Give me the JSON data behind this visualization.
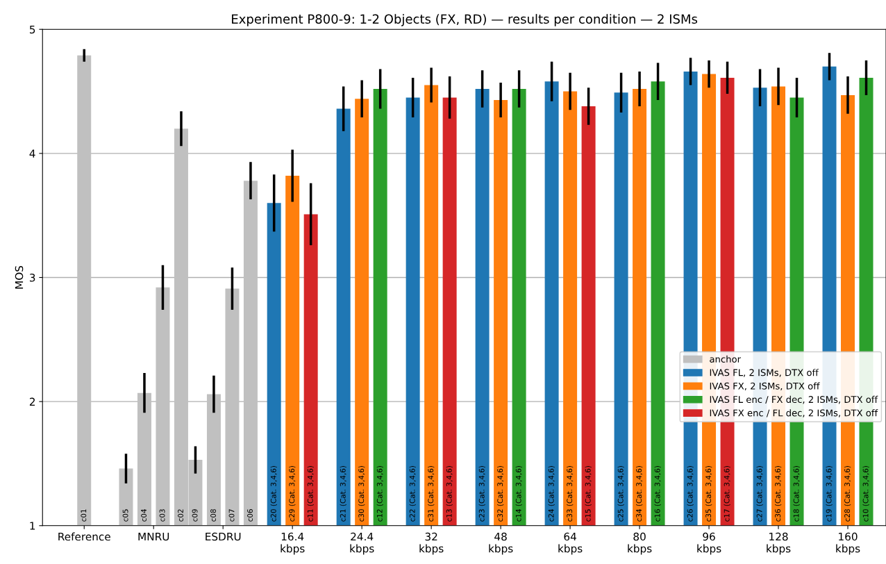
{
  "chart_data": {
    "type": "bar",
    "title": "Experiment P800-9: 1-2 Objects (FX, RD) — results per condition — 2 ISMs",
    "ylabel": "MOS",
    "categories": [
      "Reference",
      "MNRU",
      "ESDRU",
      "16.4\nkbps",
      "24.4\nkbps",
      "32\nkbps",
      "48\nkbps",
      "64\nkbps",
      "80\nkbps",
      "96\nkbps",
      "128\nkbps",
      "160\nkbps"
    ],
    "ylim": [
      1,
      5
    ],
    "yticks": [
      1,
      2,
      3,
      4,
      5
    ],
    "grid": "y",
    "legend": "bottom right",
    "series": [
      {
        "name": "anchor",
        "color": "#c0c0c0",
        "values": [
          4.79,
          1.46,
          1.53,
          null,
          null,
          null,
          null,
          null,
          null,
          null,
          null,
          null
        ],
        "errors": [
          0.05,
          0.12,
          0.11,
          null,
          null,
          null,
          null,
          null,
          null,
          null,
          null,
          null
        ],
        "value_labels": [
          "c01",
          "c05",
          "c09",
          null,
          null,
          null,
          null,
          null,
          null,
          null,
          null,
          null
        ]
      },
      {
        "color": "#c0c0c0",
        "values": [
          null,
          2.07,
          2.06,
          null,
          null,
          null,
          null,
          null,
          null,
          null,
          null,
          null
        ],
        "errors": [
          null,
          0.16,
          0.15,
          null,
          null,
          null,
          null,
          null,
          null,
          null,
          null,
          null
        ],
        "value_labels": [
          null,
          "c04",
          "c08",
          null,
          null,
          null,
          null,
          null,
          null,
          null,
          null,
          null
        ]
      },
      {
        "color": "#c0c0c0",
        "values": [
          null,
          2.92,
          2.91,
          null,
          null,
          null,
          null,
          null,
          null,
          null,
          null,
          null
        ],
        "errors": [
          null,
          0.18,
          0.17,
          null,
          null,
          null,
          null,
          null,
          null,
          null,
          null,
          null
        ],
        "value_labels": [
          null,
          "c03",
          "c07",
          null,
          null,
          null,
          null,
          null,
          null,
          null,
          null,
          null
        ]
      },
      {
        "color": "#c0c0c0",
        "values": [
          null,
          4.2,
          3.78,
          null,
          null,
          null,
          null,
          null,
          null,
          null,
          null,
          null
        ],
        "errors": [
          null,
          0.14,
          0.15,
          null,
          null,
          null,
          null,
          null,
          null,
          null,
          null,
          null
        ],
        "value_labels": [
          null,
          "c02",
          "c06",
          null,
          null,
          null,
          null,
          null,
          null,
          null,
          null,
          null
        ]
      },
      {
        "name": "IVAS FL, 2 ISMs, DTX off",
        "color": "#1f77b4",
        "values": [
          null,
          null,
          null,
          3.6,
          4.36,
          4.45,
          4.52,
          4.58,
          4.49,
          4.66,
          4.53,
          4.7
        ],
        "errors": [
          null,
          null,
          null,
          0.23,
          0.18,
          0.16,
          0.15,
          0.16,
          0.16,
          0.11,
          0.15,
          0.11
        ],
        "value_labels": [
          null,
          null,
          null,
          "c20 (Cat. 3,4,6)",
          "c21 (Cat. 3,4,6)",
          "c22 (Cat. 3,4,6)",
          "c23 (Cat. 3,4,6)",
          "c24 (Cat. 3,4,6)",
          "c25 (Cat. 3,4,6)",
          "c26 (Cat. 3,4,6)",
          "c27 (Cat. 3,4,6)",
          "c19 (Cat. 3,4,6)"
        ]
      },
      {
        "name": "IVAS FX, 2 ISMs, DTX off",
        "color": "#ff7f0e",
        "values": [
          null,
          null,
          null,
          3.82,
          4.44,
          4.55,
          4.43,
          4.5,
          4.52,
          4.64,
          4.54,
          4.47
        ],
        "errors": [
          null,
          null,
          null,
          0.21,
          0.15,
          0.14,
          0.14,
          0.15,
          0.14,
          0.11,
          0.15,
          0.15
        ],
        "value_labels": [
          null,
          null,
          null,
          "c29 (Cat. 3,4,6)",
          "c30 (Cat. 3,4,6)",
          "c31 (Cat. 3,4,6)",
          "c32 (Cat. 3,4,6)",
          "c33 (Cat. 3,4,6)",
          "c34 (Cat. 3,4,6)",
          "c35 (Cat. 3,4,6)",
          "c36 (Cat. 3,4,6)",
          "c28 (Cat. 3,4,6)"
        ]
      },
      {
        "name": "IVAS FL enc / FX dec, 2 ISMs, DTX off",
        "color": "#2ca02c",
        "values": [
          null,
          null,
          null,
          null,
          4.52,
          null,
          4.52,
          null,
          4.58,
          null,
          4.45,
          4.61
        ],
        "errors": [
          null,
          null,
          null,
          null,
          0.16,
          null,
          0.15,
          null,
          0.15,
          null,
          0.16,
          0.14
        ],
        "value_labels": [
          null,
          null,
          null,
          null,
          "c12 (Cat. 3,4,6)",
          null,
          "c14 (Cat. 3,4,6)",
          null,
          "c16 (Cat. 3,4,6)",
          null,
          "c18 (Cat. 3,4,6)",
          "c10 (Cat. 3,4,6)"
        ]
      },
      {
        "name": "IVAS FX enc / FL dec, 2 ISMs, DTX off",
        "color": "#d62728",
        "values": [
          null,
          null,
          null,
          3.51,
          null,
          4.45,
          null,
          4.38,
          null,
          4.61,
          null,
          null
        ],
        "errors": [
          null,
          null,
          null,
          0.25,
          null,
          0.17,
          null,
          0.15,
          null,
          0.13,
          null,
          null
        ],
        "value_labels": [
          null,
          null,
          null,
          "c11 (Cat. 3,4,6)",
          null,
          "c13 (Cat. 3,4,6)",
          null,
          "c15 (Cat. 3,4,6)",
          null,
          "c17 (Cat. 3,4,6)",
          null,
          null
        ]
      }
    ]
  }
}
